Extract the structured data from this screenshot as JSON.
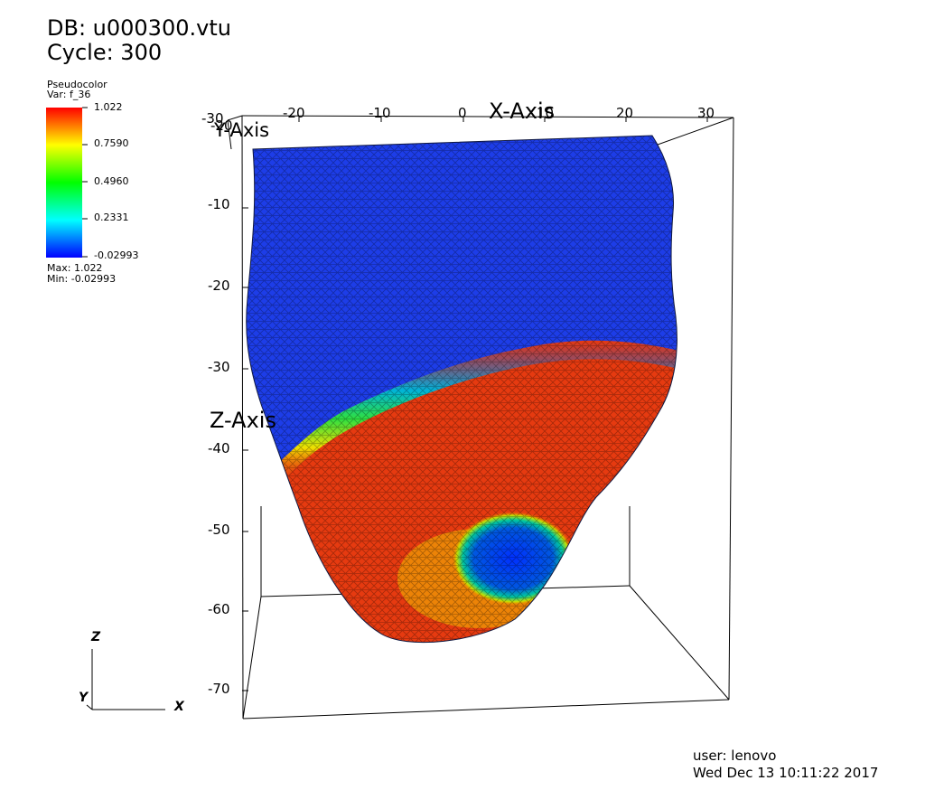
{
  "header": {
    "db_label": "DB: u000300.vtu",
    "cycle_label": "Cycle: 300"
  },
  "legend": {
    "plot_type": "Pseudocolor",
    "variable": "Var: f_36",
    "ticks": [
      "1.022",
      "0.7590",
      "0.4960",
      "0.2331",
      "-0.02993"
    ],
    "max_label": "Max:  1.022",
    "min_label": "Min: -0.02993",
    "colors": [
      "#ff0000",
      "#ffff00",
      "#00ff00",
      "#00ffff",
      "#0000ff"
    ]
  },
  "axes": {
    "x_title": "X-Axis",
    "y_title": "Y-Axis",
    "z_title": "Z-Axis",
    "x_ticks": [
      "-30",
      "-20",
      "-10",
      "0",
      "10",
      "20",
      "30"
    ],
    "z_ticks": [
      "-10",
      "-20",
      "-30",
      "-40",
      "-50",
      "-60",
      "-70"
    ],
    "y_ticks": [
      "-30",
      "-20"
    ]
  },
  "triad": {
    "z": "Z",
    "y": "Y",
    "x": "X"
  },
  "footer": {
    "user": "user: lenovo",
    "timestamp": "Wed Dec 13 10:11:22 2017"
  }
}
